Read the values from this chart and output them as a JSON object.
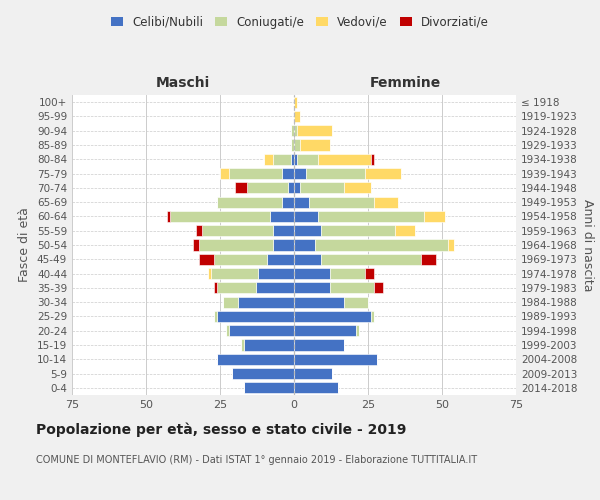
{
  "age_groups": [
    "0-4",
    "5-9",
    "10-14",
    "15-19",
    "20-24",
    "25-29",
    "30-34",
    "35-39",
    "40-44",
    "45-49",
    "50-54",
    "55-59",
    "60-64",
    "65-69",
    "70-74",
    "75-79",
    "80-84",
    "85-89",
    "90-94",
    "95-99",
    "100+"
  ],
  "birth_years": [
    "2014-2018",
    "2009-2013",
    "2004-2008",
    "1999-2003",
    "1994-1998",
    "1989-1993",
    "1984-1988",
    "1979-1983",
    "1974-1978",
    "1969-1973",
    "1964-1968",
    "1959-1963",
    "1954-1958",
    "1949-1953",
    "1944-1948",
    "1939-1943",
    "1934-1938",
    "1929-1933",
    "1924-1928",
    "1919-1923",
    "≤ 1918"
  ],
  "maschi": {
    "celibi": [
      17,
      21,
      26,
      17,
      22,
      26,
      19,
      13,
      12,
      9,
      7,
      7,
      8,
      4,
      2,
      4,
      1,
      0,
      0,
      0,
      0
    ],
    "coniugati": [
      0,
      0,
      0,
      1,
      1,
      1,
      5,
      13,
      16,
      18,
      25,
      24,
      34,
      22,
      14,
      18,
      6,
      1,
      1,
      0,
      0
    ],
    "vedovi": [
      0,
      0,
      0,
      0,
      0,
      0,
      0,
      0,
      1,
      0,
      0,
      0,
      0,
      0,
      0,
      3,
      3,
      0,
      0,
      0,
      0
    ],
    "divorziati": [
      0,
      0,
      0,
      0,
      0,
      0,
      0,
      1,
      0,
      5,
      2,
      2,
      1,
      0,
      4,
      0,
      0,
      0,
      0,
      0,
      0
    ]
  },
  "femmine": {
    "nubili": [
      15,
      13,
      28,
      17,
      21,
      26,
      17,
      12,
      12,
      9,
      7,
      9,
      8,
      5,
      2,
      4,
      1,
      0,
      0,
      0,
      0
    ],
    "coniugate": [
      0,
      0,
      0,
      0,
      1,
      1,
      8,
      15,
      12,
      34,
      45,
      25,
      36,
      22,
      15,
      20,
      7,
      2,
      1,
      0,
      0
    ],
    "vedove": [
      0,
      0,
      0,
      0,
      0,
      0,
      0,
      0,
      0,
      0,
      2,
      7,
      7,
      8,
      9,
      12,
      18,
      10,
      12,
      2,
      1
    ],
    "divorziate": [
      0,
      0,
      0,
      0,
      0,
      0,
      0,
      3,
      3,
      5,
      0,
      0,
      0,
      0,
      0,
      0,
      1,
      0,
      0,
      0,
      0
    ]
  },
  "colors": {
    "celibi_nubili": "#4472C4",
    "coniugati": "#C5D89D",
    "vedovi": "#FFD966",
    "divorziati": "#C00000"
  },
  "xlim": 75,
  "title": "Popolazione per età, sesso e stato civile - 2019",
  "subtitle": "COMUNE DI MONTEFLAVIO (RM) - Dati ISTAT 1° gennaio 2019 - Elaborazione TUTTITALIA.IT",
  "ylabel_left": "Fasce di età",
  "ylabel_right": "Anni di nascita",
  "xlabel_maschi": "Maschi",
  "xlabel_femmine": "Femmine",
  "bg_color": "#f0f0f0",
  "plot_bg": "#ffffff"
}
